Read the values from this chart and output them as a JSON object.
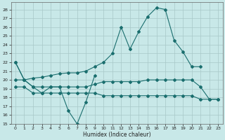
{
  "bg_color": "#c8e8e8",
  "grid_color": "#a8c8c8",
  "line_color": "#1a6e6e",
  "xlabel": "Humidex (Indice chaleur)",
  "xlim": [
    -0.5,
    23.5
  ],
  "ylim": [
    15,
    28.8
  ],
  "yticks": [
    15,
    16,
    17,
    18,
    19,
    20,
    21,
    22,
    23,
    24,
    25,
    26,
    27,
    28
  ],
  "xticks": [
    0,
    1,
    2,
    3,
    4,
    5,
    6,
    7,
    8,
    9,
    10,
    11,
    12,
    13,
    14,
    15,
    16,
    17,
    18,
    19,
    20,
    21,
    22,
    23
  ],
  "line_zigzag_x": [
    0,
    1,
    2,
    3,
    4,
    5,
    6,
    7,
    8,
    9
  ],
  "line_zigzag_y": [
    22,
    20,
    19.2,
    18.5,
    19.2,
    19.2,
    16.5,
    15,
    17.5,
    20.5
  ],
  "line_top_x": [
    0,
    1,
    2,
    3,
    4,
    5,
    6,
    7,
    8,
    9,
    10,
    11,
    12,
    13,
    14,
    15,
    16,
    17,
    18,
    19,
    20,
    21
  ],
  "line_top_y": [
    22,
    20,
    20.2,
    20.3,
    20.5,
    20.7,
    20.8,
    20.8,
    21,
    21.5,
    22,
    23,
    26,
    23.5,
    25.5,
    27.2,
    28.2,
    28,
    24.5,
    23.2,
    21.5,
    21.5
  ],
  "line_mid_x": [
    0,
    1,
    2,
    3,
    4,
    5,
    6,
    7,
    8,
    9,
    10,
    11,
    12,
    13,
    14,
    15,
    16,
    17,
    18,
    19,
    20,
    21,
    22,
    23
  ],
  "line_mid_y": [
    20,
    20,
    19.2,
    19.2,
    19.2,
    19.2,
    19.2,
    19.2,
    19.2,
    19.5,
    19.8,
    19.8,
    19.8,
    19.8,
    19.8,
    20,
    20,
    20,
    20,
    20,
    20,
    19.2,
    17.8,
    17.8
  ],
  "line_low_x": [
    0,
    1,
    2,
    3,
    4,
    5,
    6,
    7,
    8,
    9,
    10,
    11,
    12,
    13,
    14,
    15,
    16,
    17,
    18,
    19,
    20,
    21,
    22,
    23
  ],
  "line_low_y": [
    19.2,
    19.2,
    18.5,
    18.5,
    18.5,
    18.5,
    18.5,
    18.5,
    18.5,
    18.5,
    18.2,
    18.2,
    18.2,
    18.2,
    18.2,
    18.2,
    18.2,
    18.2,
    18.2,
    18.2,
    18.2,
    17.8,
    17.8,
    17.8
  ]
}
